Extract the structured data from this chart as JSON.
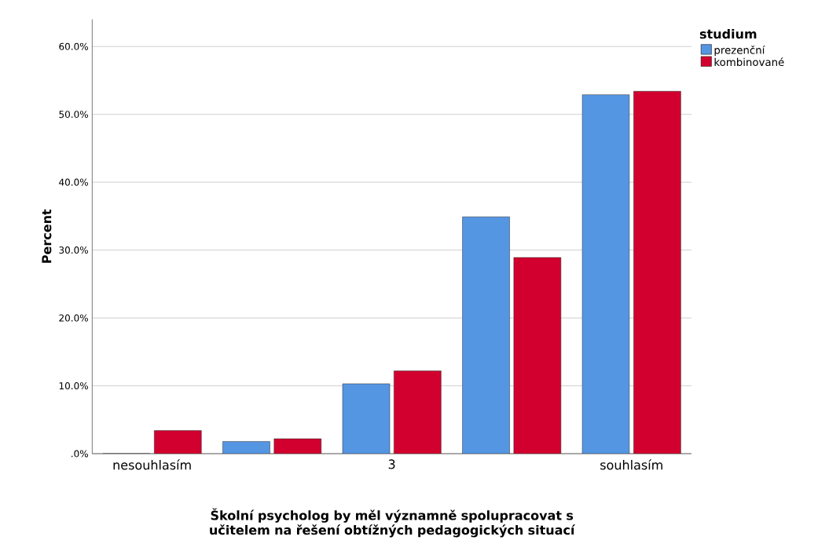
{
  "chart_data": {
    "type": "bar",
    "xlabel": "Školní psycholog by měl významně spolupracovat s učitelem na řešení obtížných pedagogických situací",
    "ylabel": "Percent",
    "legend_title": "studium",
    "categories": [
      "nesouhlasím",
      null,
      "3",
      null,
      "souhlasím"
    ],
    "series": [
      {
        "name": "prezenční",
        "color": "#5596e3",
        "values": [
          0,
          1.8,
          10.3,
          34.9,
          52.9
        ]
      },
      {
        "name": "kombinované",
        "color": "#d2002e",
        "values": [
          3.4,
          2.2,
          12.2,
          28.9,
          53.4
        ]
      }
    ],
    "ylim": [
      0,
      64
    ],
    "yticks": [
      {
        "value": 0,
        "label": ".0%"
      },
      {
        "value": 10,
        "label": "10.0%"
      },
      {
        "value": 20,
        "label": "20.0%"
      },
      {
        "value": 30,
        "label": "30.0%"
      },
      {
        "value": 40,
        "label": "40.0%"
      },
      {
        "value": 50,
        "label": "50.0%"
      },
      {
        "value": 60,
        "label": "60.0%"
      }
    ],
    "grid": "y",
    "legend": "top right"
  }
}
